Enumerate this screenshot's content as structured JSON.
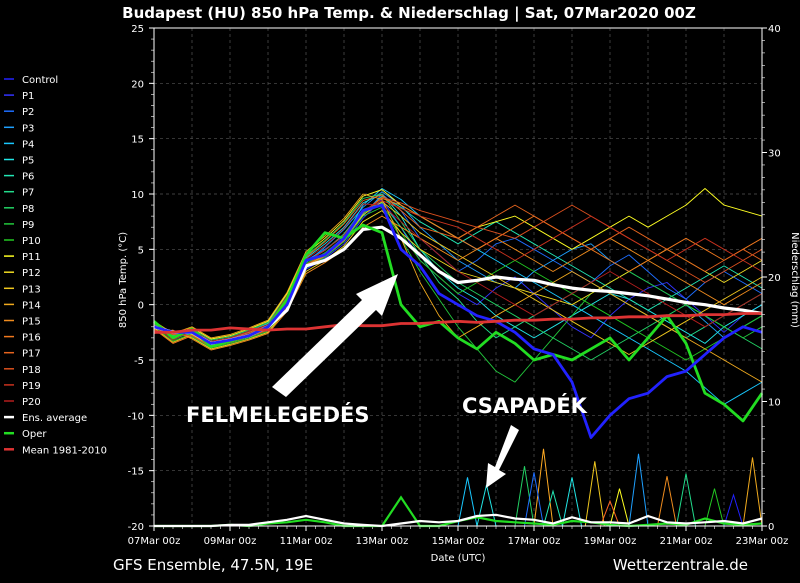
{
  "chart_data": {
    "type": "line",
    "title": "Budapest  (HU)  850 hPa Temp. & Niederschlag | Sat, 07Mar2020 00Z",
    "xlabel": "Date (UTC)",
    "ylabel": "850 hPa Temp. (°C)",
    "ylabel_right": "Niederschlag (mm)",
    "ylim": [
      -20,
      25
    ],
    "ylim_right": [
      0,
      40
    ],
    "yticks": [
      -20,
      -15,
      -10,
      -5,
      0,
      5,
      10,
      15,
      20,
      25
    ],
    "yticks_right": [
      0,
      10,
      20,
      30,
      40
    ],
    "xlim_days": [
      0,
      16
    ],
    "xticks": [
      "07Mar 00z",
      "09Mar 00z",
      "11Mar 00z",
      "13Mar 00z",
      "15Mar 00z",
      "17Mar 00z",
      "19Mar 00z",
      "21Mar 00z",
      "23Mar 00z"
    ],
    "grid": true,
    "legend_position": "left",
    "x_days": [
      0,
      0.5,
      1,
      1.5,
      2,
      2.5,
      3,
      3.5,
      4,
      4.5,
      5,
      5.5,
      6,
      6.5,
      7,
      7.5,
      8,
      8.5,
      9,
      9.5,
      10,
      10.5,
      11,
      11.5,
      12,
      12.5,
      13,
      13.5,
      14,
      14.5,
      15,
      15.5,
      16
    ],
    "series": [
      {
        "name": "Ens. average",
        "color": "#ffffff",
        "width": 3.2,
        "values": [
          -2.0,
          -2.5,
          -2.5,
          -3.5,
          -3.2,
          -2.8,
          -2.0,
          -0.5,
          3.5,
          4.0,
          5.0,
          6.8,
          7.0,
          6.0,
          4.5,
          3.0,
          2.0,
          2.2,
          2.5,
          2.3,
          2.2,
          1.8,
          1.5,
          1.3,
          1.2,
          1.0,
          0.8,
          0.5,
          0.2,
          0.0,
          -0.3,
          -0.5,
          -0.8
        ]
      },
      {
        "name": "Oper",
        "color": "#22dd22",
        "width": 2.8,
        "values": [
          -1.5,
          -3.0,
          -2.2,
          -3.8,
          -3.3,
          -2.8,
          -2.0,
          0.5,
          4.5,
          6.5,
          6.0,
          7.2,
          6.5,
          0.0,
          -2.0,
          -1.5,
          -3.0,
          -4.0,
          -2.5,
          -3.5,
          -5.0,
          -4.5,
          -5.0,
          -4.0,
          -3.0,
          -5.0,
          -3.0,
          -1.0,
          -3.5,
          -8.0,
          -9.0,
          -10.5,
          -8.0
        ]
      },
      {
        "name": "Control",
        "color": "#2222ff",
        "width": 2.8,
        "values": [
          -2.0,
          -2.5,
          -2.5,
          -3.5,
          -3.2,
          -2.8,
          -2.0,
          0.0,
          4.0,
          4.5,
          6.0,
          8.5,
          9.0,
          5.0,
          3.5,
          1.0,
          0.0,
          -1.0,
          -1.5,
          -2.5,
          -4.0,
          -4.5,
          -7.0,
          -12.0,
          -10.0,
          -8.5,
          -8.0,
          -6.5,
          -6.0,
          -4.5,
          -3.0,
          -2.0,
          -2.5
        ]
      },
      {
        "name": "Mean 1981-2010",
        "color": "#dd3333",
        "width": 2.8,
        "values": [
          -2.5,
          -2.5,
          -2.3,
          -2.3,
          -2.1,
          -2.2,
          -2.3,
          -2.2,
          -2.2,
          -2.0,
          -1.8,
          -1.9,
          -1.9,
          -1.7,
          -1.7,
          -1.6,
          -1.5,
          -1.6,
          -1.5,
          -1.4,
          -1.4,
          -1.3,
          -1.3,
          -1.2,
          -1.2,
          -1.1,
          -1.1,
          -1.0,
          -1.0,
          -0.9,
          -0.9,
          -0.8,
          -0.8
        ]
      },
      {
        "name": "P1",
        "color": "#3333ff",
        "width": 0.9,
        "values": [
          -2.0,
          -3.0,
          -2.5,
          -3.5,
          -3.0,
          -2.6,
          -2.2,
          -0.5,
          3.2,
          4.2,
          5.5,
          7.8,
          9.5,
          7.0,
          4.0,
          2.5,
          1.0,
          0.0,
          1.5,
          2.5,
          1.0,
          -0.5,
          -2.0,
          -3.0,
          -1.0,
          0.5,
          1.5,
          2.0,
          0.5,
          -1.0,
          -2.5,
          -1.0,
          0.0
        ]
      },
      {
        "name": "P2",
        "color": "#1e6eff",
        "width": 0.9,
        "values": [
          -2.2,
          -2.8,
          -2.6,
          -3.6,
          -3.3,
          -2.7,
          -1.8,
          0.3,
          4.0,
          5.0,
          6.2,
          8.0,
          10.0,
          8.5,
          6.0,
          4.5,
          3.0,
          4.0,
          5.5,
          6.0,
          5.0,
          4.0,
          3.0,
          2.0,
          3.5,
          4.5,
          3.0,
          1.5,
          0.5,
          2.0,
          3.0,
          2.0,
          1.0
        ]
      },
      {
        "name": "P3",
        "color": "#1ea0ff",
        "width": 0.9,
        "values": [
          -1.8,
          -3.2,
          -2.4,
          -3.4,
          -3.1,
          -2.5,
          -1.9,
          0.6,
          3.8,
          5.2,
          6.8,
          8.8,
          10.2,
          9.0,
          7.0,
          5.5,
          4.0,
          3.0,
          2.0,
          1.5,
          3.0,
          4.0,
          5.0,
          5.5,
          4.0,
          3.0,
          2.0,
          1.0,
          0.0,
          -1.5,
          -3.0,
          -2.0,
          -1.0
        ]
      },
      {
        "name": "P4",
        "color": "#19c8ff",
        "width": 0.9,
        "values": [
          -2.1,
          -2.7,
          -2.7,
          -3.7,
          -3.2,
          -2.8,
          -2.1,
          0.1,
          3.6,
          4.6,
          6.0,
          9.0,
          10.5,
          9.5,
          8.0,
          7.0,
          6.0,
          5.0,
          4.0,
          3.0,
          2.0,
          1.0,
          0.0,
          -1.0,
          -2.0,
          -3.0,
          -4.0,
          -5.0,
          -6.0,
          -7.5,
          -9.0,
          -8.0,
          -7.0
        ]
      },
      {
        "name": "P5",
        "color": "#22e6e6",
        "width": 0.9,
        "values": [
          -1.9,
          -2.9,
          -2.3,
          -3.3,
          -3.0,
          -2.4,
          -1.7,
          0.8,
          4.2,
          5.5,
          7.0,
          9.2,
          10.0,
          8.0,
          5.0,
          3.0,
          1.5,
          0.5,
          -1.0,
          -2.0,
          -3.0,
          -2.0,
          -1.0,
          0.0,
          1.0,
          0.5,
          -0.5,
          -1.5,
          -2.5,
          -3.5,
          -2.0,
          -1.0,
          0.0
        ]
      },
      {
        "name": "P6",
        "color": "#22e6b4",
        "width": 0.9,
        "values": [
          -2.3,
          -2.6,
          -2.8,
          -3.8,
          -3.4,
          -2.9,
          -2.3,
          -0.2,
          3.4,
          4.4,
          5.8,
          8.2,
          9.8,
          8.8,
          7.5,
          6.5,
          5.5,
          6.5,
          7.5,
          6.5,
          5.5,
          4.5,
          3.5,
          2.5,
          1.5,
          0.5,
          -0.5,
          0.5,
          1.5,
          2.5,
          3.5,
          2.5,
          1.5
        ]
      },
      {
        "name": "P7",
        "color": "#22dc8c",
        "width": 0.9,
        "values": [
          -2.0,
          -3.1,
          -2.5,
          -3.5,
          -3.1,
          -2.6,
          -2.0,
          0.4,
          3.9,
          4.9,
          6.4,
          8.6,
          9.2,
          7.0,
          4.5,
          2.0,
          0.5,
          -1.5,
          -3.0,
          -2.0,
          -1.0,
          0.0,
          1.0,
          2.0,
          1.0,
          0.0,
          -1.0,
          -2.0,
          -3.0,
          -2.0,
          -1.0,
          0.0,
          1.0
        ]
      },
      {
        "name": "P8",
        "color": "#22d264",
        "width": 0.9,
        "values": [
          -1.7,
          -2.8,
          -2.2,
          -3.2,
          -2.9,
          -2.3,
          -1.6,
          0.9,
          4.4,
          5.8,
          7.4,
          9.6,
          10.0,
          7.5,
          5.0,
          3.5,
          2.0,
          1.0,
          0.0,
          -1.0,
          -2.0,
          -3.0,
          -4.0,
          -5.0,
          -4.0,
          -3.0,
          -2.0,
          -1.0,
          0.0,
          -1.0,
          -2.0,
          -3.0,
          -4.0
        ]
      },
      {
        "name": "P9",
        "color": "#22c83c",
        "width": 0.9,
        "values": [
          -2.4,
          -2.5,
          -2.9,
          -3.9,
          -3.5,
          -3.0,
          -2.4,
          -0.3,
          3.3,
          4.3,
          5.7,
          8.0,
          8.8,
          6.0,
          3.0,
          0.5,
          -2.0,
          -4.0,
          -6.0,
          -7.0,
          -5.0,
          -3.0,
          -1.0,
          1.0,
          2.0,
          3.0,
          2.0,
          1.0,
          0.0,
          -1.0,
          -2.0,
          -3.0,
          -2.0
        ]
      },
      {
        "name": "P10",
        "color": "#22c822",
        "width": 0.9,
        "values": [
          -2.0,
          -3.3,
          -2.6,
          -3.6,
          -3.2,
          -2.7,
          -2.0,
          0.2,
          3.7,
          4.7,
          6.1,
          8.3,
          9.0,
          6.5,
          4.0,
          2.5,
          1.0,
          2.0,
          3.0,
          4.0,
          3.0,
          2.0,
          1.0,
          0.0,
          -1.0,
          -2.0,
          -3.0,
          -4.0,
          -5.0,
          -4.0,
          -3.0,
          -2.0,
          -1.0
        ]
      },
      {
        "name": "P11",
        "color": "#ffff22",
        "width": 0.9,
        "values": [
          -1.6,
          -2.7,
          -2.1,
          -3.1,
          -2.8,
          -2.2,
          -1.5,
          1.0,
          4.6,
          6.0,
          7.6,
          9.8,
          10.4,
          9.0,
          8.0,
          7.0,
          6.0,
          7.0,
          7.5,
          8.0,
          7.0,
          6.0,
          5.0,
          6.0,
          7.0,
          8.0,
          7.0,
          8.0,
          9.0,
          10.5,
          9.0,
          8.5,
          8.0
        ]
      },
      {
        "name": "P12",
        "color": "#f0dc22",
        "width": 0.9,
        "values": [
          -2.5,
          -2.4,
          -3.0,
          -4.0,
          -3.6,
          -3.1,
          -2.5,
          -0.4,
          3.0,
          4.0,
          5.3,
          7.5,
          8.5,
          6.5,
          5.0,
          4.0,
          3.0,
          2.5,
          2.0,
          1.5,
          1.0,
          0.5,
          0.0,
          1.0,
          2.0,
          3.0,
          4.0,
          5.0,
          4.0,
          3.0,
          2.0,
          3.0,
          4.0
        ]
      },
      {
        "name": "P13",
        "color": "#f0c81e",
        "width": 0.9,
        "values": [
          -2.1,
          -3.4,
          -2.7,
          -3.7,
          -3.3,
          -2.8,
          -2.1,
          0.0,
          3.5,
          4.5,
          5.9,
          8.1,
          9.3,
          8.0,
          6.5,
          5.5,
          4.5,
          3.5,
          2.5,
          1.5,
          0.5,
          -0.5,
          -1.5,
          -2.5,
          -3.5,
          -4.5,
          -3.5,
          -2.5,
          -1.5,
          -0.5,
          0.5,
          1.5,
          2.5
        ]
      },
      {
        "name": "P14",
        "color": "#f0aa1e",
        "width": 0.9,
        "values": [
          -1.5,
          -2.6,
          -2.0,
          -3.0,
          -2.7,
          -2.1,
          -1.4,
          1.1,
          4.8,
          6.2,
          7.8,
          10.0,
          9.5,
          6.0,
          2.0,
          -1.0,
          -3.0,
          -2.0,
          -1.0,
          0.0,
          1.0,
          2.0,
          3.0,
          2.0,
          1.0,
          0.0,
          -1.0,
          -2.0,
          -3.0,
          -4.0,
          -5.0,
          -6.0,
          -7.0
        ]
      },
      {
        "name": "P15",
        "color": "#f08c1e",
        "width": 0.9,
        "values": [
          -2.6,
          -2.3,
          -3.1,
          -4.1,
          -3.7,
          -3.2,
          -2.6,
          -0.6,
          2.8,
          3.8,
          5.0,
          7.0,
          8.0,
          7.0,
          6.0,
          5.0,
          4.0,
          5.0,
          6.0,
          5.0,
          4.0,
          3.0,
          4.0,
          5.0,
          6.0,
          5.0,
          4.0,
          3.0,
          2.0,
          1.0,
          0.0,
          1.0,
          2.0
        ]
      },
      {
        "name": "P16",
        "color": "#f0781e",
        "width": 0.9,
        "values": [
          -2.2,
          -3.5,
          -2.8,
          -3.8,
          -3.4,
          -2.9,
          -2.2,
          -0.1,
          3.4,
          4.4,
          5.8,
          8.4,
          9.6,
          9.0,
          8.0,
          7.0,
          6.0,
          5.0,
          6.0,
          7.0,
          8.0,
          7.0,
          6.0,
          5.0,
          4.0,
          3.0,
          4.0,
          5.0,
          6.0,
          5.0,
          4.0,
          5.0,
          6.0
        ]
      },
      {
        "name": "P17",
        "color": "#e6641e",
        "width": 0.9,
        "values": [
          -1.9,
          -2.9,
          -2.4,
          -3.4,
          -3.0,
          -2.5,
          -1.9,
          0.7,
          4.3,
          5.7,
          7.3,
          9.4,
          9.9,
          8.5,
          7.0,
          6.5,
          6.0,
          7.0,
          8.0,
          9.0,
          8.0,
          7.0,
          6.0,
          5.0,
          6.0,
          7.0,
          6.0,
          5.0,
          4.0,
          3.0,
          4.0,
          5.0,
          4.0
        ]
      },
      {
        "name": "P18",
        "color": "#dc501e",
        "width": 0.9,
        "values": [
          -2.3,
          -2.7,
          -2.8,
          -3.8,
          -3.4,
          -2.9,
          -2.3,
          -0.2,
          3.6,
          4.6,
          6.0,
          8.3,
          9.7,
          9.2,
          8.5,
          8.0,
          7.5,
          7.0,
          6.5,
          6.0,
          7.0,
          8.0,
          9.0,
          8.0,
          7.0,
          6.0,
          5.0,
          4.0,
          3.0,
          2.0,
          3.0,
          4.0,
          5.0
        ]
      },
      {
        "name": "P19",
        "color": "#c8321e",
        "width": 0.9,
        "values": [
          -2.0,
          -3.0,
          -2.5,
          -3.5,
          -3.1,
          -2.6,
          -2.0,
          0.3,
          3.9,
          4.9,
          6.3,
          8.5,
          9.4,
          8.7,
          8.0,
          7.5,
          7.0,
          6.0,
          5.0,
          4.0,
          5.0,
          6.0,
          7.0,
          8.0,
          7.0,
          6.0,
          5.0,
          4.0,
          5.0,
          6.0,
          5.0,
          4.0,
          3.0
        ]
      },
      {
        "name": "P20",
        "color": "#b41e1e",
        "width": 0.9,
        "values": [
          -1.8,
          -3.2,
          -2.3,
          -3.3,
          -3.0,
          -2.4,
          -1.8,
          0.8,
          4.1,
          5.3,
          6.9,
          9.1,
          9.0,
          7.5,
          6.0,
          4.5,
          3.0,
          2.0,
          1.0,
          0.0,
          -1.0,
          0.0,
          1.0,
          2.0,
          3.0,
          2.0,
          1.0,
          0.0,
          -1.0,
          -2.0,
          -1.0,
          0.0,
          1.0
        ]
      }
    ],
    "precip_series": [
      {
        "name": "Oper",
        "color": "#22dd22",
        "values": [
          0,
          0,
          0,
          0,
          0.1,
          0,
          0.2,
          0.3,
          0.5,
          0.3,
          0,
          0,
          0,
          2.3,
          0,
          0,
          0.4,
          0.7,
          0.4,
          0.3,
          0.2,
          0.1,
          0.4,
          0.3,
          0.1,
          0,
          0.1,
          0.2,
          0.1,
          0.6,
          0.2,
          0.1,
          0.2
        ]
      },
      {
        "name": "Ens. average",
        "color": "#ffffff",
        "values": [
          0,
          0,
          0,
          0,
          0.1,
          0.1,
          0.3,
          0.5,
          0.8,
          0.5,
          0.2,
          0.1,
          0,
          0.2,
          0.4,
          0.3,
          0.4,
          0.8,
          0.9,
          0.6,
          0.5,
          0.2,
          0.7,
          0.3,
          0.3,
          0.2,
          0.8,
          0.3,
          0.2,
          0.3,
          0.4,
          0.2,
          0.6
        ]
      }
    ],
    "precip_peaks": [
      {
        "x": 10.25,
        "y": 6.2,
        "color": "#ffaa22"
      },
      {
        "x": 9.75,
        "y": 4.8,
        "color": "#22d264"
      },
      {
        "x": 10.0,
        "y": 4.3,
        "color": "#1e6eff"
      },
      {
        "x": 11.0,
        "y": 3.9,
        "color": "#22e6e6"
      },
      {
        "x": 10.5,
        "y": 2.8,
        "color": "#22e6b4"
      },
      {
        "x": 11.6,
        "y": 5.2,
        "color": "#f0c81e"
      },
      {
        "x": 12.25,
        "y": 3.0,
        "color": "#ffff22"
      },
      {
        "x": 12.75,
        "y": 5.8,
        "color": "#1ea0ff"
      },
      {
        "x": 13.5,
        "y": 4.0,
        "color": "#f08c1e"
      },
      {
        "x": 14.0,
        "y": 4.2,
        "color": "#22dc8c"
      },
      {
        "x": 8.25,
        "y": 3.9,
        "color": "#19c8ff"
      },
      {
        "x": 8.75,
        "y": 3.3,
        "color": "#22e6e6"
      },
      {
        "x": 14.75,
        "y": 3.0,
        "color": "#22c822"
      },
      {
        "x": 15.75,
        "y": 5.5,
        "color": "#f0aa1e"
      },
      {
        "x": 15.25,
        "y": 2.5,
        "color": "#2222ff"
      },
      {
        "x": 12.0,
        "y": 2.0,
        "color": "#ff6622"
      }
    ],
    "annotations": [
      "FELMELEGEDÉS",
      "CSAPADÉK"
    ],
    "footer_left": "GFS Ensemble, 47.5N, 19E",
    "footer_right": "Wetterzentrale.de"
  }
}
